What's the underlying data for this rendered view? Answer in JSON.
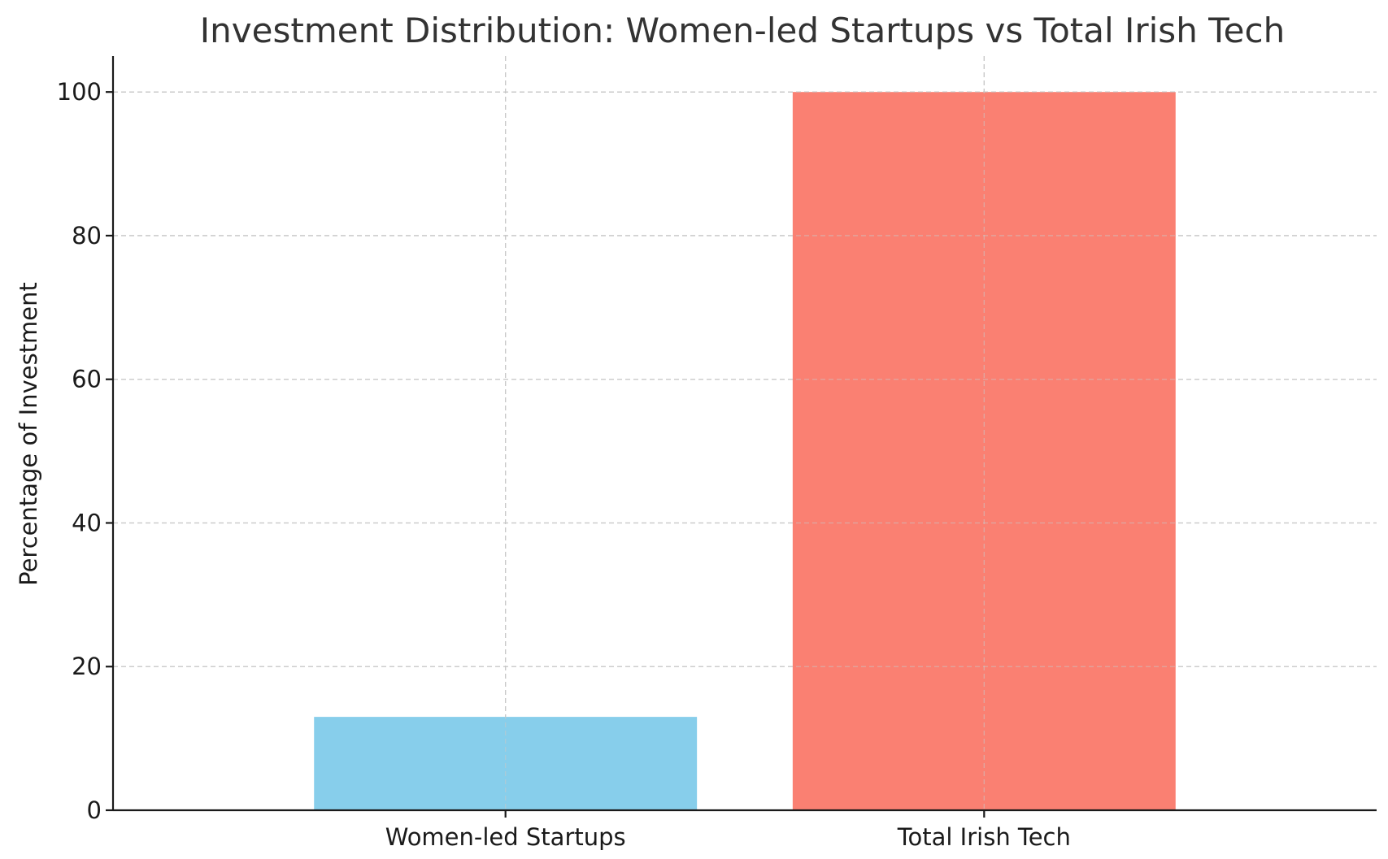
{
  "chart_data": {
    "type": "bar",
    "title": "Investment Distribution: Women-led Startups vs Total Irish Tech",
    "xlabel": "",
    "ylabel": "Percentage of Investment",
    "categories": [
      "Women-led Startups",
      "Total Irish Tech"
    ],
    "values": [
      13,
      100
    ],
    "colors": [
      "#87CEEB",
      "#FA8072"
    ],
    "ylim": [
      0,
      105
    ],
    "yticks": [
      0,
      20,
      40,
      60,
      80,
      100
    ],
    "grid": true
  }
}
